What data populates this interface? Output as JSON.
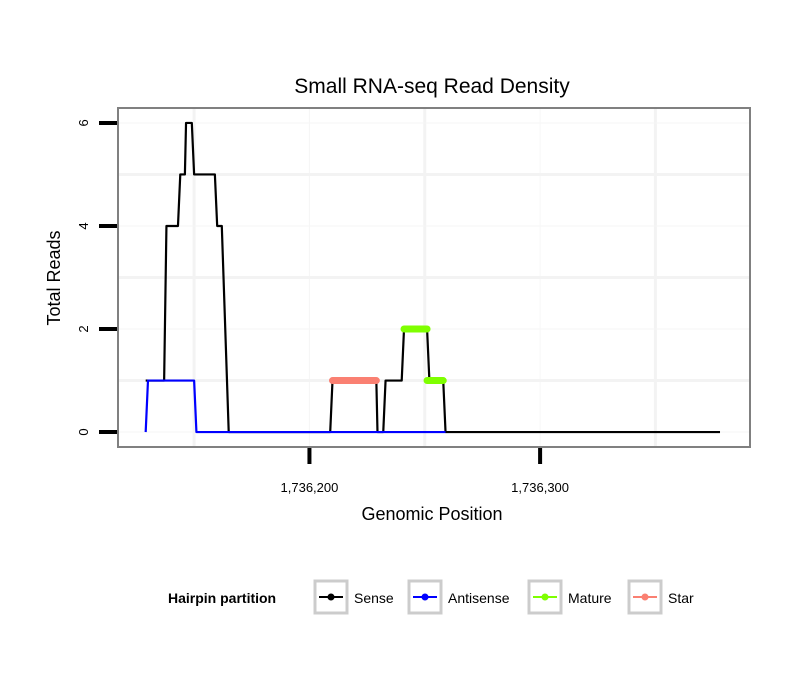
{
  "chart_data": {
    "type": "line",
    "title": "Small RNA-seq Read Density",
    "xlabel": "Genomic Position",
    "ylabel": "Total Reads",
    "xlim": [
      1736117,
      1736391
    ],
    "ylim": [
      -0.29,
      6.29
    ],
    "x_ticks": [
      1736200,
      1736300
    ],
    "x_tick_labels": [
      "1,736,200",
      "1,736,300"
    ],
    "x_minor_grid": [
      1736150,
      1736250,
      1736350
    ],
    "y_ticks": [
      0,
      2,
      4,
      6
    ],
    "y_tick_labels": [
      "0",
      "2",
      "4",
      "6"
    ],
    "y_minor_grid": [
      1,
      3,
      5
    ],
    "grid": true,
    "legend": {
      "title": "Hairpin partition",
      "placement": "bottom",
      "entries": [
        "Sense",
        "Antisense",
        "Mature",
        "Star"
      ]
    },
    "series": [
      {
        "name": "Sense",
        "color": "#000000",
        "width": 2.2,
        "x": [
          1736129,
          1736137,
          1736138,
          1736143,
          1736144,
          1736146,
          1736146.5,
          1736149,
          1736150,
          1736159,
          1736160,
          1736162,
          1736165,
          1736209,
          1736210,
          1736229,
          1736229.5,
          1736232,
          1736233,
          1736240,
          1736241,
          1736251,
          1736252,
          1736258,
          1736259,
          1736378
        ],
        "y": [
          1,
          1,
          4,
          4,
          5,
          5,
          6,
          6,
          5,
          5,
          4,
          4,
          0,
          0,
          1,
          1,
          0,
          0,
          1,
          1,
          2,
          2,
          1,
          1,
          0,
          0
        ]
      },
      {
        "name": "Antisense",
        "color": "#0000ff",
        "width": 2.2,
        "x": [
          1736129,
          1736130,
          1736150,
          1736151,
          1736259
        ],
        "y": [
          0,
          1,
          1,
          0,
          0
        ]
      },
      {
        "name": "Mature",
        "color": "#7fff00",
        "width": 7,
        "segments": [
          [
            1736241,
            1736251,
            2
          ],
          [
            1736251,
            1736258,
            1
          ]
        ]
      },
      {
        "name": "Star",
        "color": "#fa8072",
        "width": 7,
        "segments": [
          [
            1736210,
            1736229,
            1
          ]
        ]
      }
    ]
  }
}
